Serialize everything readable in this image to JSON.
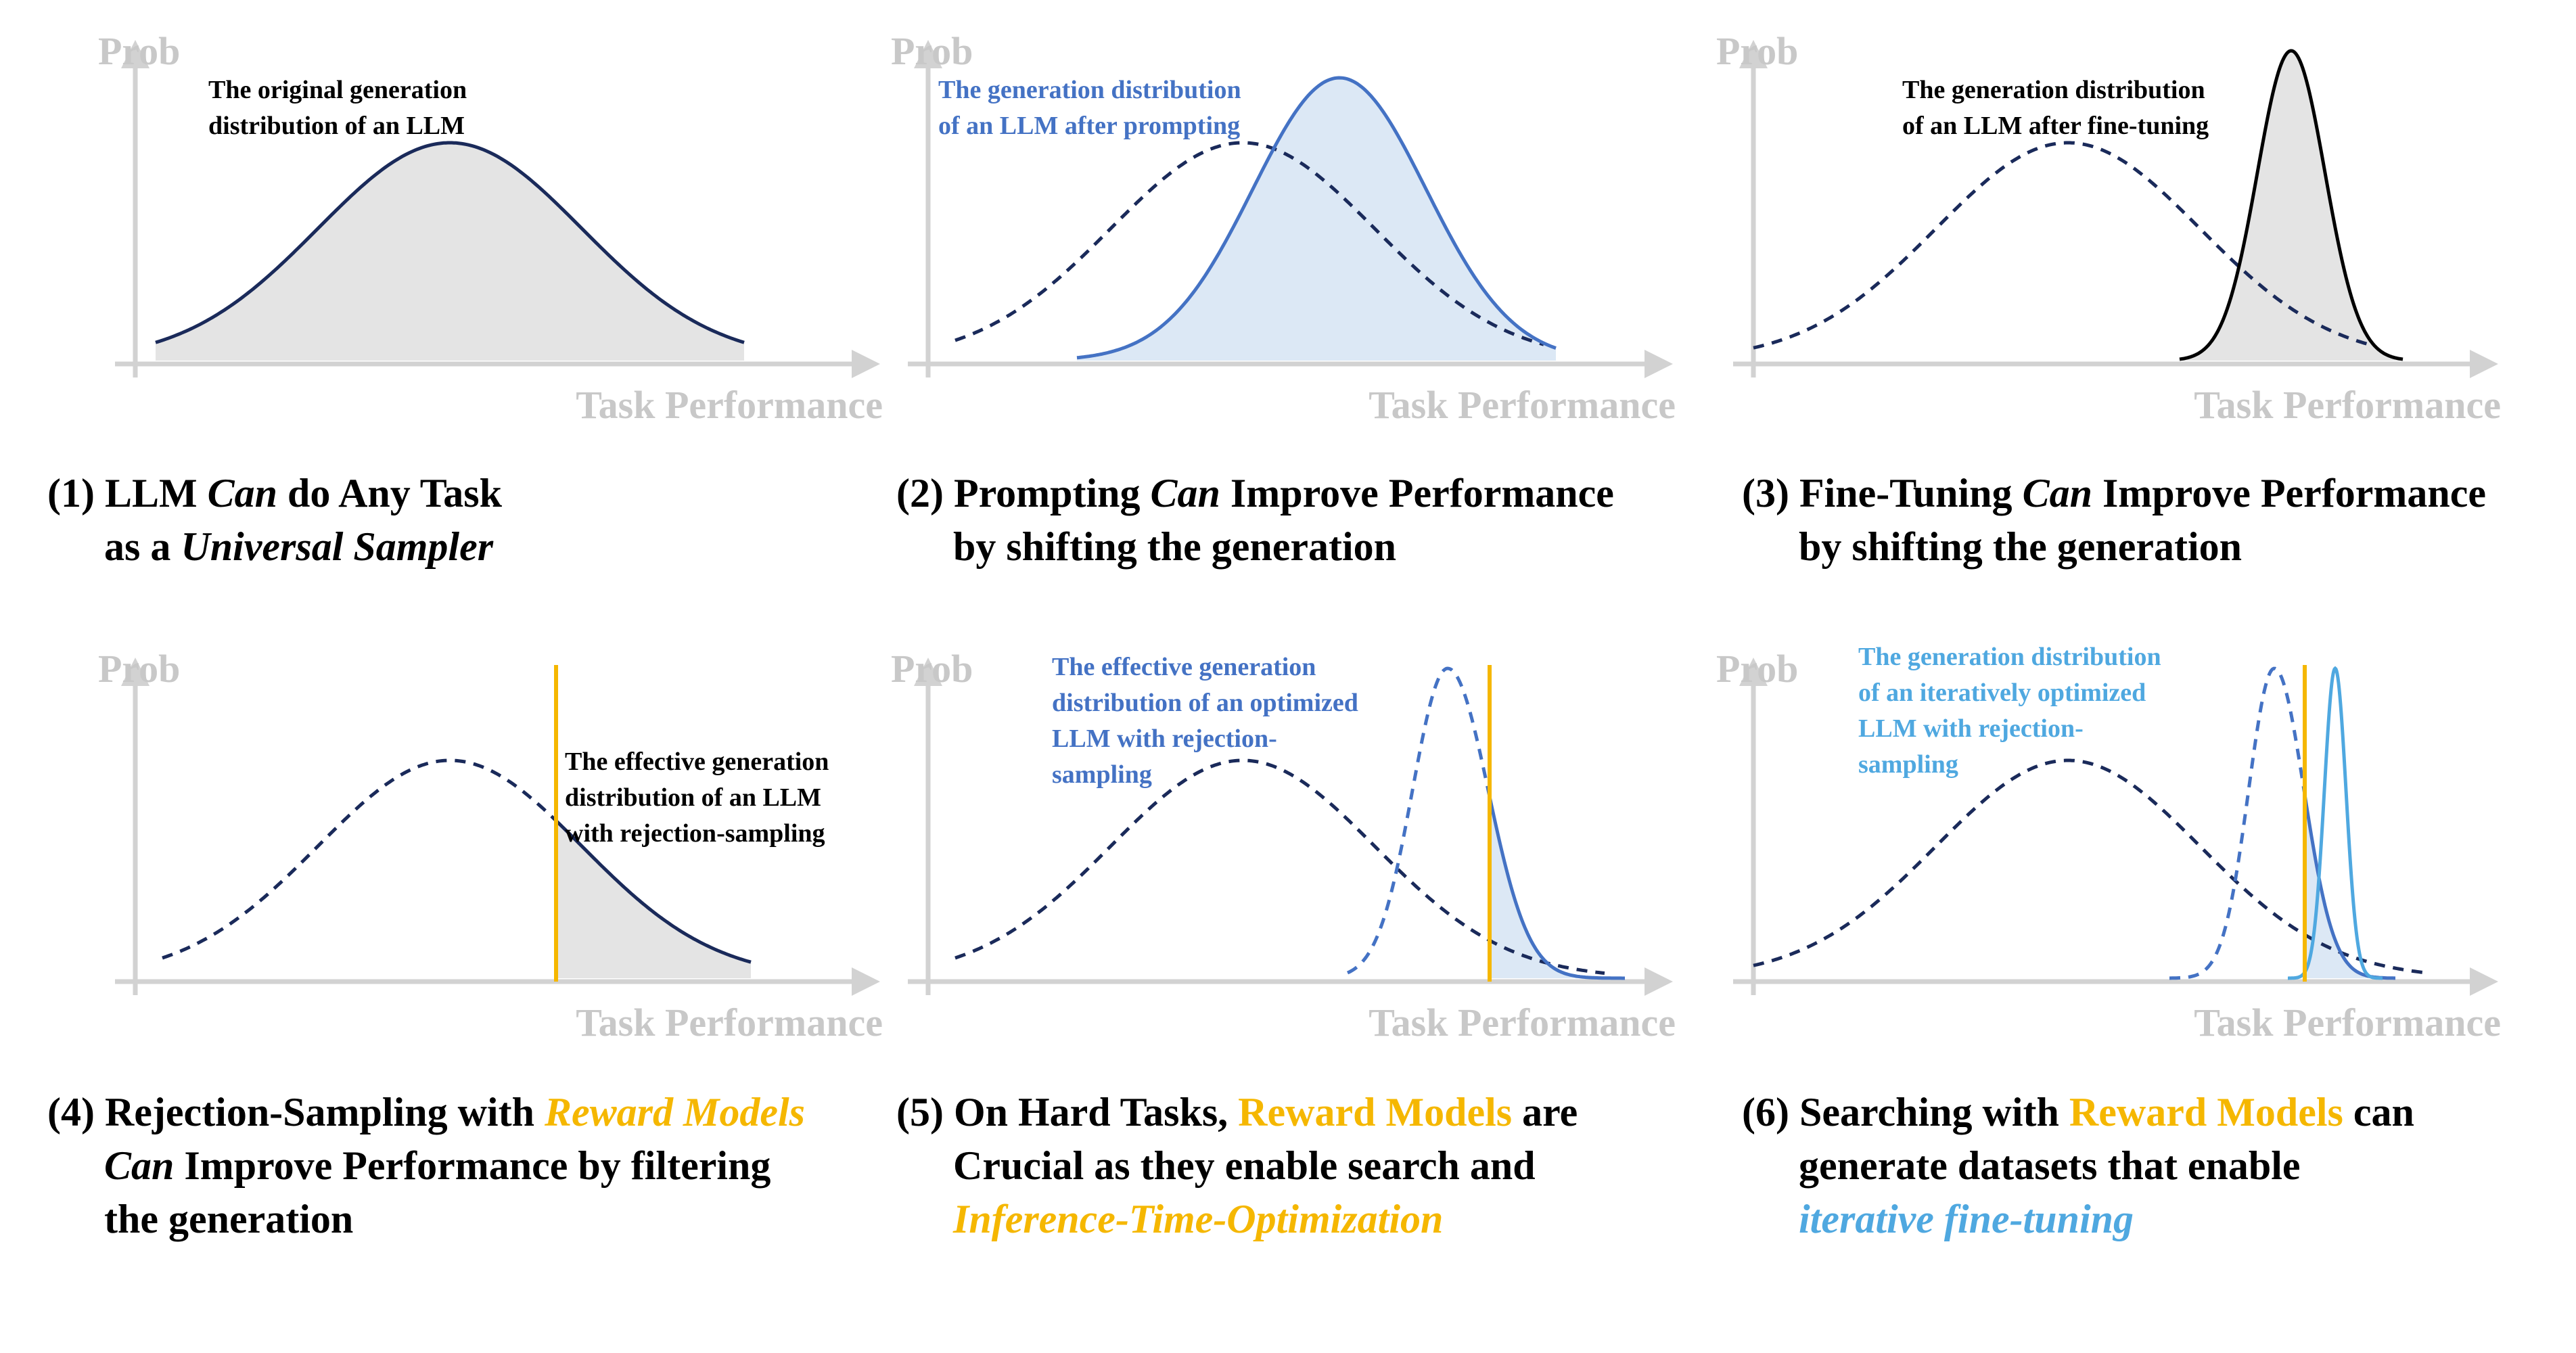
{
  "axis": {
    "y_label": "Prob",
    "x_label": "Task Performance"
  },
  "colors": {
    "navy": "#1a2a5a",
    "blue": "#4472c4",
    "light_blue": "#4fa8e0",
    "orange": "#f5b700",
    "gray_fill": "#e4e4e4",
    "blue_fill": "#dce8f5",
    "axis": "#d2d2d2"
  },
  "panels": [
    {
      "id": 1,
      "annotation": [
        "The original generation",
        "distribution of an LLM"
      ],
      "annotation_color": "#000000",
      "caption": {
        "line1": [
          {
            "t": "(1) LLM "
          },
          {
            "t": "Can",
            "i": true
          },
          {
            "t": " do Any Task"
          }
        ],
        "line2": [
          {
            "t": "as a "
          },
          {
            "t": "Universal Sampler",
            "i": true
          }
        ]
      }
    },
    {
      "id": 2,
      "annotation": [
        "The generation distribution",
        "of an LLM after prompting"
      ],
      "annotation_color": "#4472c4",
      "caption": {
        "line1": [
          {
            "t": "(2) Prompting "
          },
          {
            "t": "Can",
            "i": true
          },
          {
            "t": " Improve Performance"
          }
        ],
        "line2": [
          {
            "t": "by shifting the generation"
          }
        ]
      }
    },
    {
      "id": 3,
      "annotation": [
        "The generation distribution",
        "of an LLM after fine-tuning"
      ],
      "annotation_color": "#000000",
      "caption": {
        "line1": [
          {
            "t": "(3) Fine-Tuning "
          },
          {
            "t": "Can",
            "i": true
          },
          {
            "t": " Improve Performance"
          }
        ],
        "line2": [
          {
            "t": "by shifting the generation"
          }
        ]
      }
    },
    {
      "id": 4,
      "annotation": [
        "The effective generation",
        "distribution of an LLM",
        "with rejection-sampling"
      ],
      "annotation_color": "#000000",
      "caption": {
        "line1": [
          {
            "t": "(4) Rejection-Sampling with "
          },
          {
            "t": "Reward Models",
            "i": true,
            "c": "#f5b700"
          }
        ],
        "line2": [
          {
            "t": "Can",
            "i": true
          },
          {
            "t": " Improve Performance by filtering"
          }
        ],
        "line3": [
          {
            "t": "the generation"
          }
        ]
      }
    },
    {
      "id": 5,
      "annotation": [
        "The effective generation",
        "distribution of an optimized",
        "LLM with rejection-",
        "sampling"
      ],
      "annotation_color": "#4472c4",
      "caption": {
        "line1": [
          {
            "t": "(5) On Hard Tasks, "
          },
          {
            "t": "Reward Models",
            "c": "#f5b700"
          },
          {
            "t": " are"
          }
        ],
        "line2": [
          {
            "t": "Crucial as they enable search and"
          }
        ],
        "line3": [
          {
            "t": "Inference-Time-Optimization",
            "i": true,
            "c": "#f5b700"
          }
        ]
      }
    },
    {
      "id": 6,
      "annotation": [
        "The generation distribution",
        "of an iteratively optimized",
        "LLM with rejection-",
        "sampling"
      ],
      "annotation_color": "#4fa8e0",
      "caption": {
        "line1": [
          {
            "t": "(6) Searching with "
          },
          {
            "t": "Reward Models",
            "c": "#f5b700"
          },
          {
            "t": " can"
          }
        ],
        "line2": [
          {
            "t": "generate datasets that enable"
          }
        ],
        "line3": [
          {
            "t": "iterative fine-tuning",
            "i": true,
            "c": "#4fa8e0"
          }
        ]
      }
    }
  ]
}
